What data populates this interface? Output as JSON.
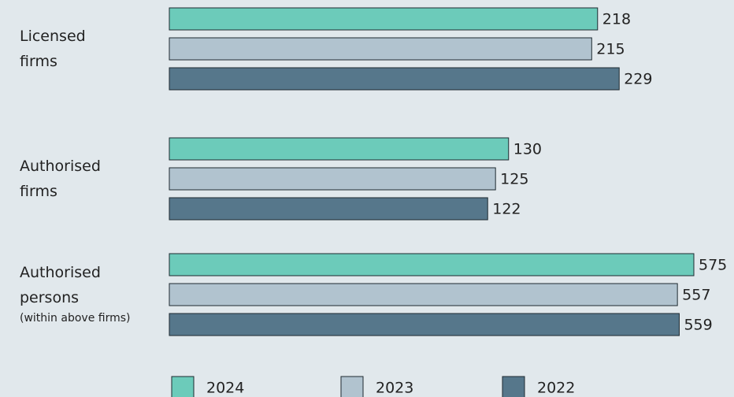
{
  "chart_data": [
    {
      "type": "bar",
      "orientation": "horizontal",
      "category": "Licensed firms",
      "xlim": [
        0,
        267
      ],
      "series": [
        {
          "name": "2024",
          "color": "#6ccbba",
          "values": [
            218
          ]
        },
        {
          "name": "2023",
          "color": "#b1c3cf",
          "values": [
            215
          ]
        },
        {
          "name": "2022",
          "color": "#56778b",
          "values": [
            229
          ]
        }
      ]
    },
    {
      "type": "bar",
      "orientation": "horizontal",
      "category": "Authorised firms",
      "xlim": [
        0,
        201
      ],
      "series": [
        {
          "name": "2024",
          "color": "#6ccbba",
          "values": [
            130
          ]
        },
        {
          "name": "2023",
          "color": "#b1c3cf",
          "values": [
            125
          ]
        },
        {
          "name": "2022",
          "color": "#56778b",
          "values": [
            122
          ]
        }
      ]
    },
    {
      "type": "bar",
      "orientation": "horizontal",
      "category": "Authorised persons",
      "note": "(within above firms)",
      "xlim": [
        0,
        575
      ],
      "series": [
        {
          "name": "2024",
          "color": "#6ccbba",
          "values": [
            575
          ]
        },
        {
          "name": "2023",
          "color": "#b1c3cf",
          "values": [
            557
          ]
        },
        {
          "name": "2022",
          "color": "#56778b",
          "values": [
            559
          ]
        }
      ]
    }
  ]
}
